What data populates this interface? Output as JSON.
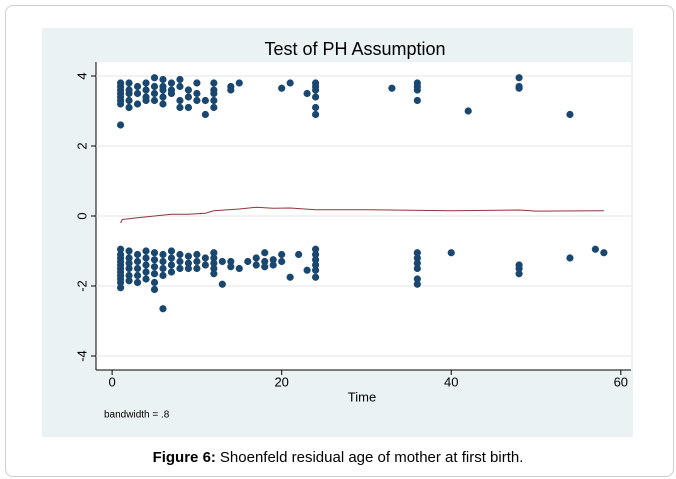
{
  "chart_data": {
    "type": "scatter",
    "title": "Test of PH Assumption",
    "x_label": "Time",
    "note": "bandwidth = .8",
    "xlim": [
      -1.9,
      61.2
    ],
    "xticks": [
      0,
      20,
      40,
      60
    ],
    "ylim": [
      -4.4,
      4.4
    ],
    "yticks": [
      -4,
      -2,
      0,
      2,
      4
    ],
    "grid": true,
    "series": [
      {
        "type": "scatter",
        "color": "#1a476f",
        "x": [
          1,
          1,
          1,
          1,
          1,
          1,
          1,
          1,
          2,
          2,
          2,
          2,
          2,
          3,
          3,
          3,
          4,
          4,
          4,
          4,
          5,
          5,
          5,
          5,
          6,
          6,
          6,
          6,
          6,
          7,
          7,
          7,
          8,
          8,
          8,
          8,
          9,
          9,
          9,
          10,
          10,
          10,
          11,
          11,
          12,
          12,
          12,
          12,
          12,
          14,
          14,
          15,
          20,
          21,
          23,
          24,
          24,
          24,
          24,
          24,
          24,
          33,
          36,
          36,
          36,
          36,
          42,
          48,
          48,
          48,
          54,
          1,
          1,
          1,
          1,
          1,
          1,
          1,
          1,
          1,
          1,
          1,
          2,
          2,
          2,
          2,
          2,
          2,
          3,
          3,
          3,
          3,
          3,
          4,
          4,
          4,
          4,
          4,
          5,
          5,
          5,
          5,
          5,
          5,
          6,
          6,
          6,
          6,
          6,
          7,
          7,
          7,
          7,
          8,
          8,
          8,
          9,
          9,
          9,
          10,
          10,
          10,
          11,
          11,
          12,
          12,
          12,
          12,
          12,
          13,
          13,
          14,
          14,
          15,
          16,
          17,
          17,
          18,
          18,
          18,
          19,
          19,
          20,
          20,
          21,
          22,
          23,
          24,
          24,
          24,
          24,
          24,
          24,
          36,
          36,
          36,
          36,
          36,
          36,
          40,
          48,
          48,
          48,
          54,
          57,
          58
        ],
        "values": [
          3.8,
          3.7,
          3.6,
          3.5,
          3.4,
          3.3,
          3.2,
          2.6,
          3.8,
          3.6,
          3.5,
          3.3,
          3.1,
          3.7,
          3.5,
          3.2,
          3.8,
          3.6,
          3.4,
          3.3,
          3.95,
          3.7,
          3.5,
          3.3,
          3.9,
          3.7,
          3.6,
          3.4,
          3.2,
          3.8,
          3.6,
          3.5,
          3.9,
          3.7,
          3.3,
          3.1,
          3.6,
          3.4,
          3.1,
          3.8,
          3.5,
          3.3,
          3.3,
          2.9,
          3.8,
          3.6,
          3.5,
          3.3,
          3.1,
          3.7,
          3.6,
          3.8,
          3.65,
          3.8,
          3.5,
          3.8,
          3.7,
          3.6,
          3.4,
          3.1,
          2.9,
          3.65,
          3.8,
          3.7,
          3.6,
          3.3,
          3.0,
          3.95,
          3.7,
          3.65,
          2.9,
          -0.95,
          -1.1,
          -1.2,
          -1.3,
          -1.4,
          -1.5,
          -1.6,
          -1.7,
          -1.8,
          -1.9,
          -2.05,
          -1.0,
          -1.2,
          -1.35,
          -1.5,
          -1.7,
          -1.85,
          -1.1,
          -1.3,
          -1.5,
          -1.7,
          -1.9,
          -1.0,
          -1.2,
          -1.4,
          -1.6,
          -1.8,
          -1.05,
          -1.25,
          -1.45,
          -1.65,
          -1.9,
          -2.1,
          -1.1,
          -1.3,
          -1.5,
          -1.7,
          -2.65,
          -1.0,
          -1.2,
          -1.4,
          -1.6,
          -1.1,
          -1.3,
          -1.5,
          -1.15,
          -1.35,
          -1.5,
          -1.1,
          -1.3,
          -1.5,
          -1.2,
          -1.4,
          -1.05,
          -1.2,
          -1.35,
          -1.5,
          -1.65,
          -1.3,
          -1.95,
          -1.3,
          -1.45,
          -1.5,
          -1.3,
          -1.2,
          -1.4,
          -1.05,
          -1.3,
          -1.45,
          -1.25,
          -1.4,
          -1.1,
          -1.3,
          -1.75,
          -1.1,
          -1.55,
          -0.95,
          -1.1,
          -1.25,
          -1.4,
          -1.55,
          -1.75,
          -1.05,
          -1.2,
          -1.35,
          -1.5,
          -1.8,
          -1.95,
          -1.05,
          -1.4,
          -1.5,
          -1.65,
          -1.2,
          -0.95,
          -1.05
        ]
      },
      {
        "type": "line",
        "color": "#90353b",
        "x": [
          1,
          1.2,
          3,
          5,
          7,
          9,
          11,
          12,
          15,
          17,
          19,
          21,
          24,
          30,
          40,
          48,
          50,
          58
        ],
        "values": [
          -0.2,
          -0.1,
          -0.05,
          0,
          0.05,
          0.05,
          0.08,
          0.15,
          0.2,
          0.25,
          0.22,
          0.23,
          0.18,
          0.18,
          0.15,
          0.17,
          0.14,
          0.15
        ]
      }
    ]
  },
  "caption": {
    "label": "Figure 6:",
    "text": "Shoenfeld residual age of mother at first birth."
  }
}
